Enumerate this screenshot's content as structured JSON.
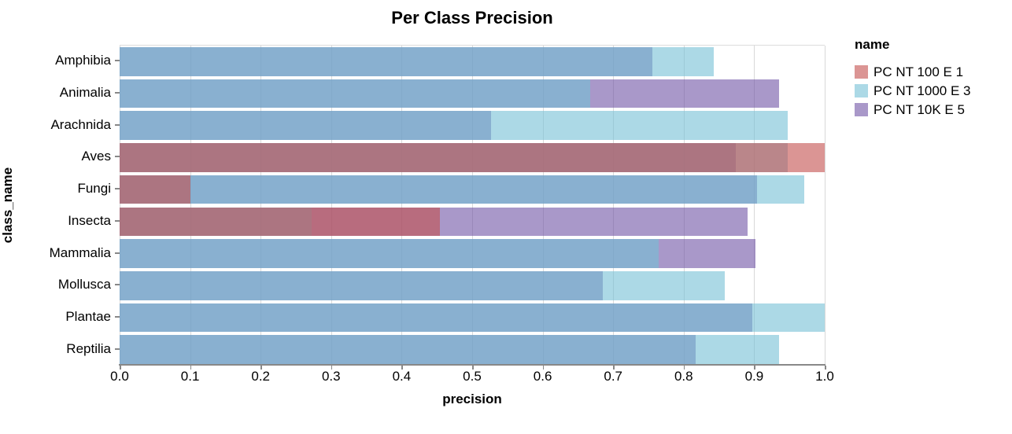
{
  "title": "Per Class Precision",
  "x_axis": {
    "label": "precision",
    "tick_labels": [
      "0.0",
      "0.1",
      "0.2",
      "0.3",
      "0.4",
      "0.5",
      "0.6",
      "0.7",
      "0.8",
      "0.9",
      "1.0"
    ],
    "min": 0,
    "max": 1
  },
  "y_axis": {
    "label": "class_name"
  },
  "legend": {
    "title": "name",
    "items": [
      {
        "label": "PC NT 100 E 1"
      },
      {
        "label": "PC NT 1000 E 3"
      },
      {
        "label": "PC NT 10K E 5"
      }
    ]
  },
  "chart_data": {
    "type": "bar",
    "orientation": "horizontal",
    "title": "Per Class Precision",
    "xlabel": "precision",
    "ylabel": "class_name",
    "xlim": [
      0,
      1
    ],
    "grid": true,
    "legend_position": "right",
    "overlap_opacity": 0.6,
    "categories": [
      "Amphibia",
      "Animalia",
      "Arachnida",
      "Aves",
      "Fungi",
      "Insecta",
      "Mammalia",
      "Mollusca",
      "Plantae",
      "Reptilia"
    ],
    "series": [
      {
        "name": "PC NT 100 E 1",
        "color": "rgba(195,78,77,0.6)",
        "solid_color": "#db9594",
        "values": [
          null,
          null,
          null,
          1.0,
          0.1,
          0.454,
          null,
          null,
          null,
          null
        ]
      },
      {
        "name": "PC NT 1000 E 3",
        "color": "rgba(117,192,213,0.6)",
        "solid_color": "#acd9e6",
        "values": [
          0.843,
          0.667,
          0.948,
          0.948,
          0.971,
          0.272,
          0.764,
          0.858,
          1.0,
          0.935
        ]
      },
      {
        "name": "PC NT 10K E 5",
        "color": "rgba(112,83,165,0.6)",
        "solid_color": "#a998c9",
        "values": [
          0.756,
          0.935,
          0.527,
          0.874,
          0.904,
          0.891,
          0.902,
          0.685,
          0.897,
          0.817
        ]
      }
    ]
  }
}
